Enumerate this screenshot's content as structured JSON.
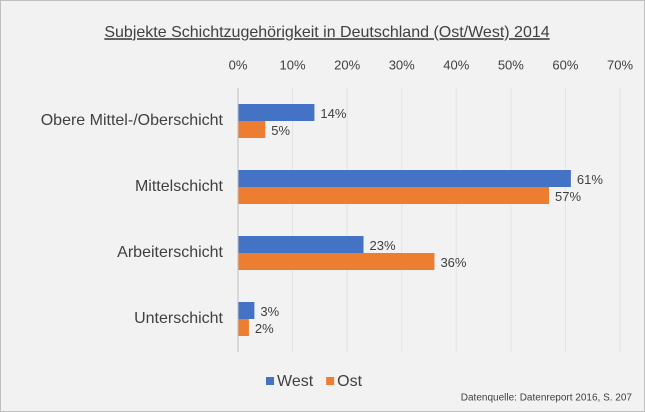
{
  "chart_data": {
    "type": "hbar",
    "title": "Subjekte Schichtzugehörigkeit in Deutschland (Ost/West) 2014",
    "categories": [
      "Obere Mittel-/Oberschicht",
      "Mittelschicht",
      "Arbeiterschicht",
      "Unterschicht"
    ],
    "series": [
      {
        "name": "West",
        "color": "#4472c4",
        "values": [
          14,
          61,
          23,
          3
        ],
        "value_labels": [
          "14%",
          "61%",
          "23%",
          "3%"
        ]
      },
      {
        "name": "Ost",
        "color": "#ed7d31",
        "values": [
          5,
          57,
          36,
          2
        ],
        "value_labels": [
          "5%",
          "57%",
          "36%",
          "2%"
        ]
      }
    ],
    "xlim": [
      0,
      70
    ],
    "xticks": [
      {
        "value": 0,
        "label": "0%"
      },
      {
        "value": 10,
        "label": "10%"
      },
      {
        "value": 20,
        "label": "20%"
      },
      {
        "value": 30,
        "label": "30%"
      },
      {
        "value": 40,
        "label": "40%"
      },
      {
        "value": 50,
        "label": "50%"
      },
      {
        "value": 60,
        "label": "60%"
      },
      {
        "value": 70,
        "label": "70%"
      }
    ],
    "grid": true,
    "legend": "bottom",
    "source": "Datenquelle: Datenreport 2016, S. 207"
  }
}
